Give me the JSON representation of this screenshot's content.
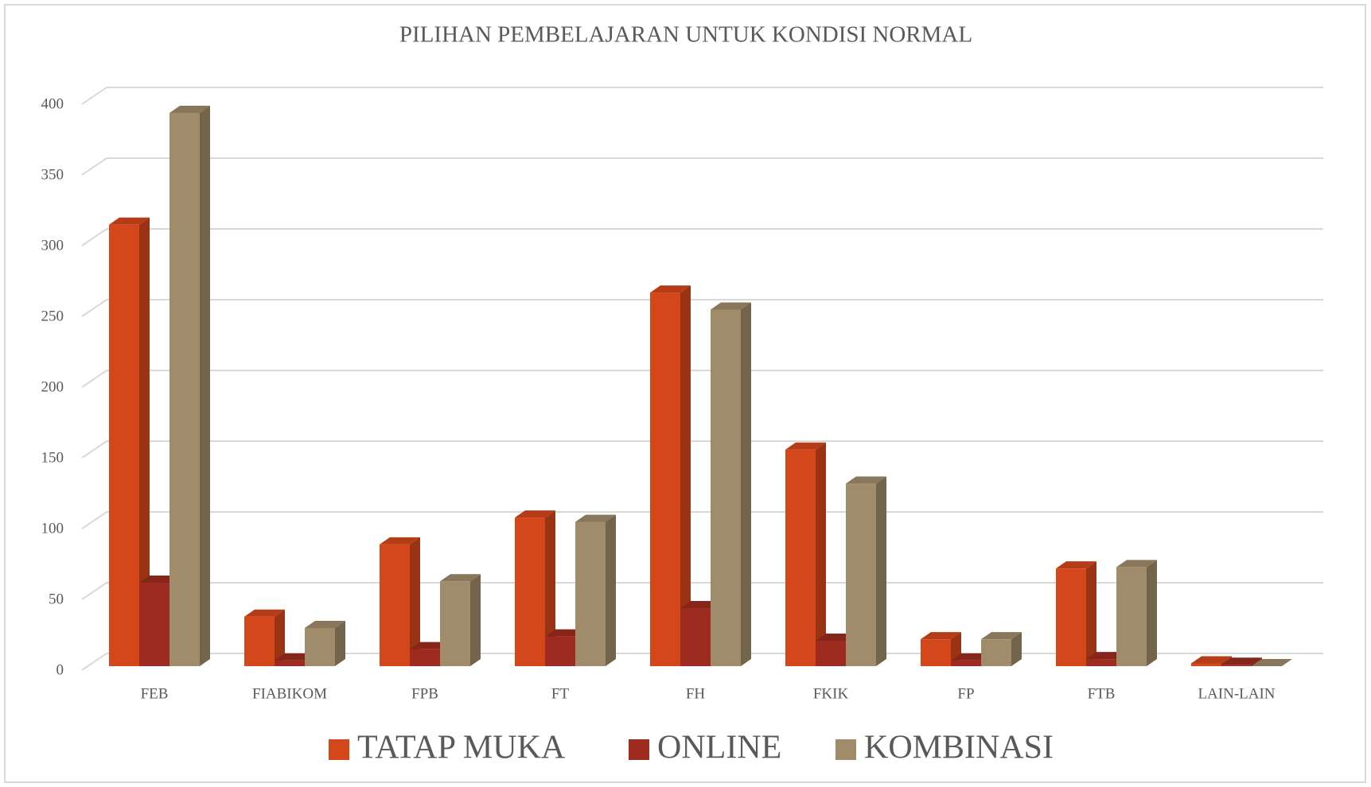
{
  "chart_data": {
    "type": "bar3d",
    "title": "PILIHAN PEMBELAJARAN UNTUK KONDISI NORMAL",
    "categories": [
      "FEB",
      "FIABIKOM",
      "FPB",
      "FT",
      "FH",
      "FKIK",
      "FP",
      "FTB",
      "LAIN-LAIN"
    ],
    "series": [
      {
        "name": "TATAP MUKA",
        "color": "#d4471a",
        "values": [
          312,
          35,
          86,
          105,
          264,
          153,
          19,
          69,
          2
        ]
      },
      {
        "name": "ONLINE",
        "color": "#9e2b1f",
        "values": [
          59,
          4,
          12,
          21,
          41,
          18,
          4,
          5,
          1
        ]
      },
      {
        "name": "KOMBINASI",
        "color": "#a08c6a",
        "values": [
          391,
          27,
          60,
          102,
          252,
          129,
          19,
          70,
          0
        ]
      }
    ],
    "ylim": [
      0,
      400
    ],
    "yticks": [
      0,
      50,
      100,
      150,
      200,
      250,
      300,
      350,
      400
    ],
    "grid": true,
    "legend": "bottom"
  }
}
